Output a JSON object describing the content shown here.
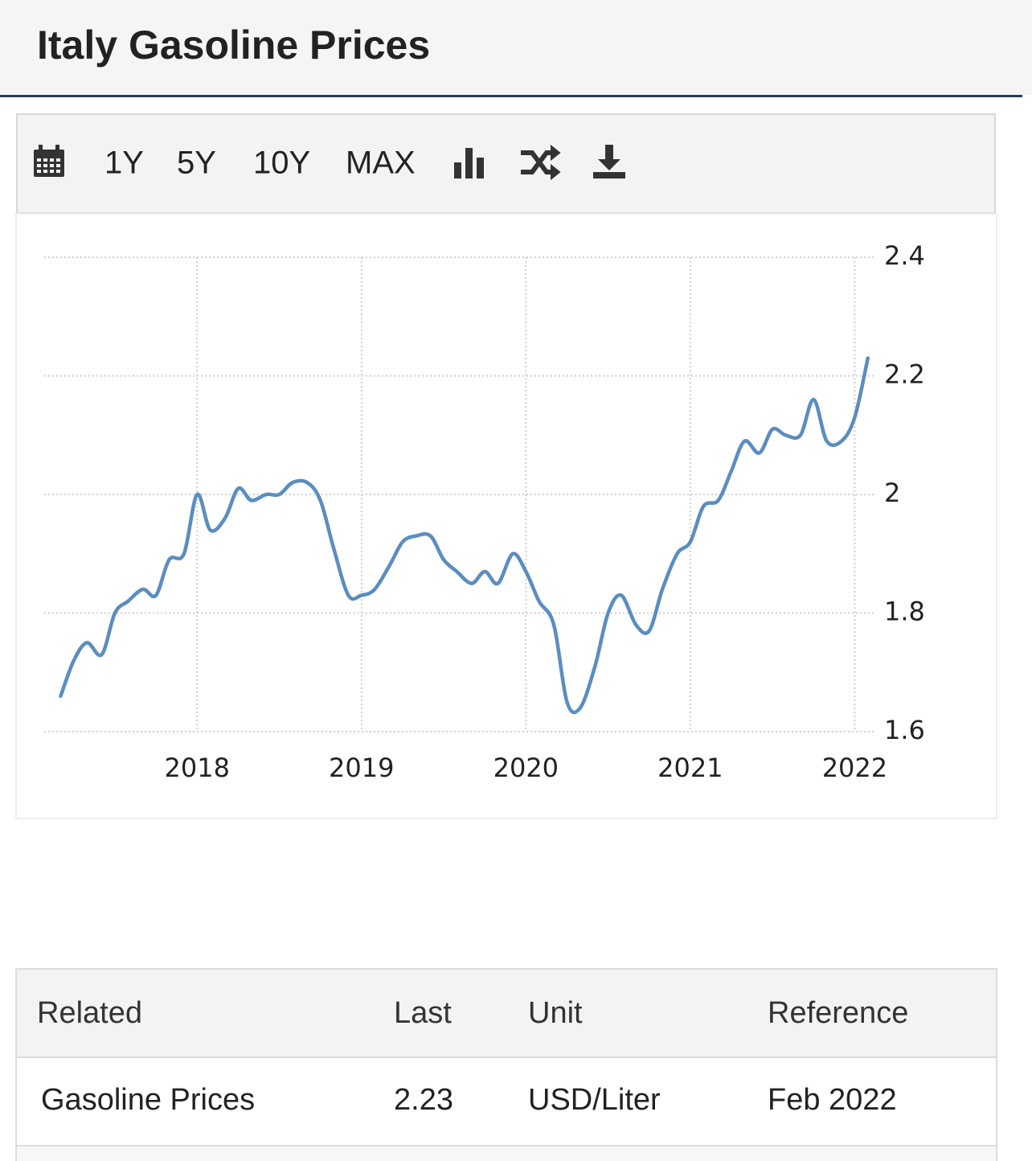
{
  "header": {
    "title": "Italy Gasoline Prices"
  },
  "toolbar": {
    "ranges": [
      "1Y",
      "5Y",
      "10Y",
      "MAX"
    ]
  },
  "chart_data": {
    "type": "line",
    "color": "#5b8dbf",
    "x": [
      2017.17,
      2017.25,
      2017.33,
      2017.42,
      2017.5,
      2017.58,
      2017.67,
      2017.75,
      2017.83,
      2017.92,
      2018.0,
      2018.08,
      2018.17,
      2018.25,
      2018.33,
      2018.42,
      2018.5,
      2018.58,
      2018.67,
      2018.75,
      2018.83,
      2018.92,
      2019.0,
      2019.08,
      2019.17,
      2019.25,
      2019.33,
      2019.42,
      2019.5,
      2019.58,
      2019.67,
      2019.75,
      2019.83,
      2019.92,
      2020.0,
      2020.08,
      2020.17,
      2020.25,
      2020.33,
      2020.42,
      2020.5,
      2020.58,
      2020.67,
      2020.75,
      2020.83,
      2020.92,
      2021.0,
      2021.08,
      2021.17,
      2021.25,
      2021.33,
      2021.42,
      2021.5,
      2021.58,
      2021.67,
      2021.75,
      2021.83,
      2021.92,
      2022.0,
      2022.08
    ],
    "values": [
      1.66,
      1.72,
      1.75,
      1.73,
      1.8,
      1.82,
      1.84,
      1.83,
      1.89,
      1.9,
      2.0,
      1.94,
      1.96,
      2.01,
      1.99,
      2.0,
      2.0,
      2.02,
      2.02,
      1.99,
      1.91,
      1.83,
      1.83,
      1.84,
      1.88,
      1.92,
      1.93,
      1.93,
      1.89,
      1.87,
      1.85,
      1.87,
      1.85,
      1.9,
      1.87,
      1.82,
      1.78,
      1.65,
      1.64,
      1.71,
      1.8,
      1.83,
      1.78,
      1.77,
      1.84,
      1.9,
      1.92,
      1.98,
      1.99,
      2.04,
      2.09,
      2.07,
      2.11,
      2.1,
      2.1,
      2.16,
      2.09,
      2.09,
      2.13,
      2.23
    ],
    "xlim": [
      2017.07,
      2022.13
    ],
    "xticks": [
      2018,
      2019,
      2020,
      2021,
      2022
    ],
    "ylim": [
      1.6,
      2.4
    ],
    "yticks": [
      1.6,
      1.8,
      2,
      2.2,
      2.4
    ],
    "grid": true
  },
  "table": {
    "columns": [
      "Related",
      "Last",
      "Unit",
      "Reference"
    ],
    "rows": [
      [
        "Gasoline Prices",
        2.23,
        "USD/Liter",
        "Feb 2022"
      ]
    ]
  }
}
